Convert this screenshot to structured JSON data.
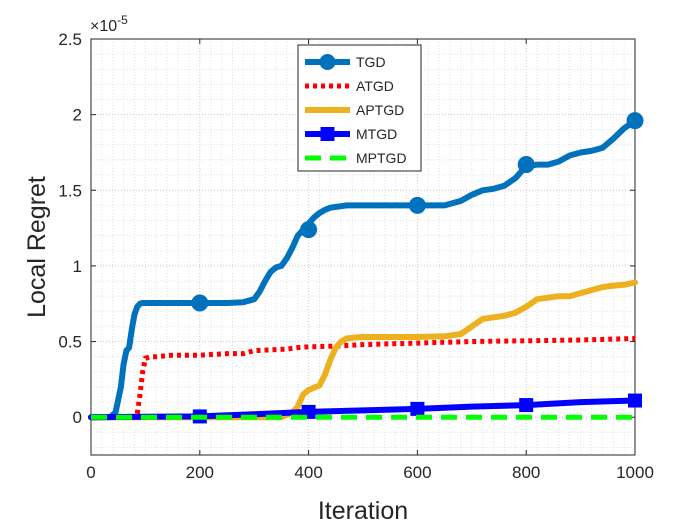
{
  "chart_data": {
    "type": "line",
    "title": "",
    "xlabel": "Iteration",
    "ylabel": "Local Regret",
    "y_exponent_label": "×10",
    "y_exponent_power": "-5",
    "xlim": [
      0,
      1000
    ],
    "ylim": [
      -0.25,
      2.5
    ],
    "xticks": [
      0,
      200,
      400,
      600,
      800,
      1000
    ],
    "xtick_labels": [
      "0",
      "200",
      "400",
      "600",
      "800",
      "1000"
    ],
    "yticks": [
      0,
      0.5,
      1,
      1.5,
      2,
      2.5
    ],
    "ytick_labels": [
      "0",
      "0.5",
      "1",
      "1.5",
      "2",
      "2.5"
    ],
    "grid": true,
    "legend_position": "top-center",
    "series": [
      {
        "name": "TGD",
        "color": "#0072BD",
        "style": "solid",
        "marker": "circle",
        "x": [
          0,
          35,
          45,
          55,
          60,
          65,
          70,
          75,
          80,
          85,
          90,
          95,
          100,
          150,
          200,
          250,
          280,
          300,
          310,
          320,
          330,
          340,
          350,
          360,
          370,
          380,
          390,
          400,
          410,
          420,
          430,
          440,
          450,
          460,
          470,
          500,
          550,
          600,
          650,
          680,
          700,
          720,
          740,
          760,
          780,
          800,
          820,
          840,
          860,
          880,
          900,
          920,
          940,
          960,
          980,
          1000
        ],
        "values": [
          0,
          0,
          0.03,
          0.2,
          0.35,
          0.44,
          0.46,
          0.58,
          0.68,
          0.73,
          0.75,
          0.755,
          0.755,
          0.755,
          0.755,
          0.755,
          0.76,
          0.78,
          0.83,
          0.9,
          0.96,
          0.99,
          1.0,
          1.05,
          1.12,
          1.2,
          1.24,
          1.28,
          1.32,
          1.35,
          1.37,
          1.385,
          1.39,
          1.395,
          1.4,
          1.4,
          1.4,
          1.4,
          1.4,
          1.43,
          1.47,
          1.5,
          1.51,
          1.53,
          1.58,
          1.66,
          1.67,
          1.67,
          1.69,
          1.73,
          1.75,
          1.76,
          1.78,
          1.84,
          1.91,
          1.96
        ],
        "marker_x": [
          200,
          400,
          600,
          800,
          1000
        ],
        "marker_values": [
          0.755,
          1.24,
          1.4,
          1.67,
          1.96
        ]
      },
      {
        "name": "ATGD",
        "color": "#FF0000",
        "style": "dotted",
        "marker": "none",
        "x": [
          0,
          80,
          85,
          90,
          95,
          100,
          110,
          120,
          150,
          180,
          200,
          250,
          280,
          300,
          330,
          360,
          380,
          400,
          450,
          500,
          600,
          700,
          800,
          900,
          1000
        ],
        "values": [
          0,
          0,
          0.02,
          0.15,
          0.3,
          0.39,
          0.4,
          0.4,
          0.41,
          0.41,
          0.41,
          0.42,
          0.42,
          0.44,
          0.445,
          0.45,
          0.46,
          0.465,
          0.47,
          0.48,
          0.49,
          0.5,
          0.505,
          0.51,
          0.52
        ]
      },
      {
        "name": "APTGD",
        "color": "#EDB120",
        "style": "solid",
        "marker": "none",
        "x": [
          0,
          350,
          370,
          380,
          390,
          400,
          420,
          430,
          440,
          450,
          460,
          470,
          480,
          500,
          550,
          600,
          650,
          680,
          700,
          720,
          740,
          760,
          780,
          800,
          820,
          840,
          860,
          880,
          900,
          920,
          940,
          960,
          980,
          1000
        ],
        "values": [
          0,
          0,
          0.03,
          0.07,
          0.15,
          0.18,
          0.21,
          0.28,
          0.38,
          0.46,
          0.5,
          0.52,
          0.525,
          0.53,
          0.53,
          0.53,
          0.535,
          0.55,
          0.6,
          0.65,
          0.66,
          0.67,
          0.69,
          0.73,
          0.78,
          0.79,
          0.8,
          0.8,
          0.82,
          0.84,
          0.86,
          0.87,
          0.875,
          0.89
        ]
      },
      {
        "name": "MTGD",
        "color": "#0000FF",
        "style": "solid",
        "marker": "square",
        "x": [
          0,
          200,
          300,
          400,
          500,
          600,
          700,
          800,
          900,
          1000
        ],
        "values": [
          0,
          0.005,
          0.02,
          0.035,
          0.045,
          0.055,
          0.07,
          0.08,
          0.1,
          0.11
        ],
        "marker_x": [
          200,
          400,
          600,
          800,
          1000
        ],
        "marker_values": [
          0.005,
          0.035,
          0.055,
          0.08,
          0.11
        ]
      },
      {
        "name": "MPTGD",
        "color": "#00FF00",
        "style": "dashed",
        "marker": "none",
        "x": [
          0,
          1000
        ],
        "values": [
          0,
          0
        ]
      }
    ]
  }
}
